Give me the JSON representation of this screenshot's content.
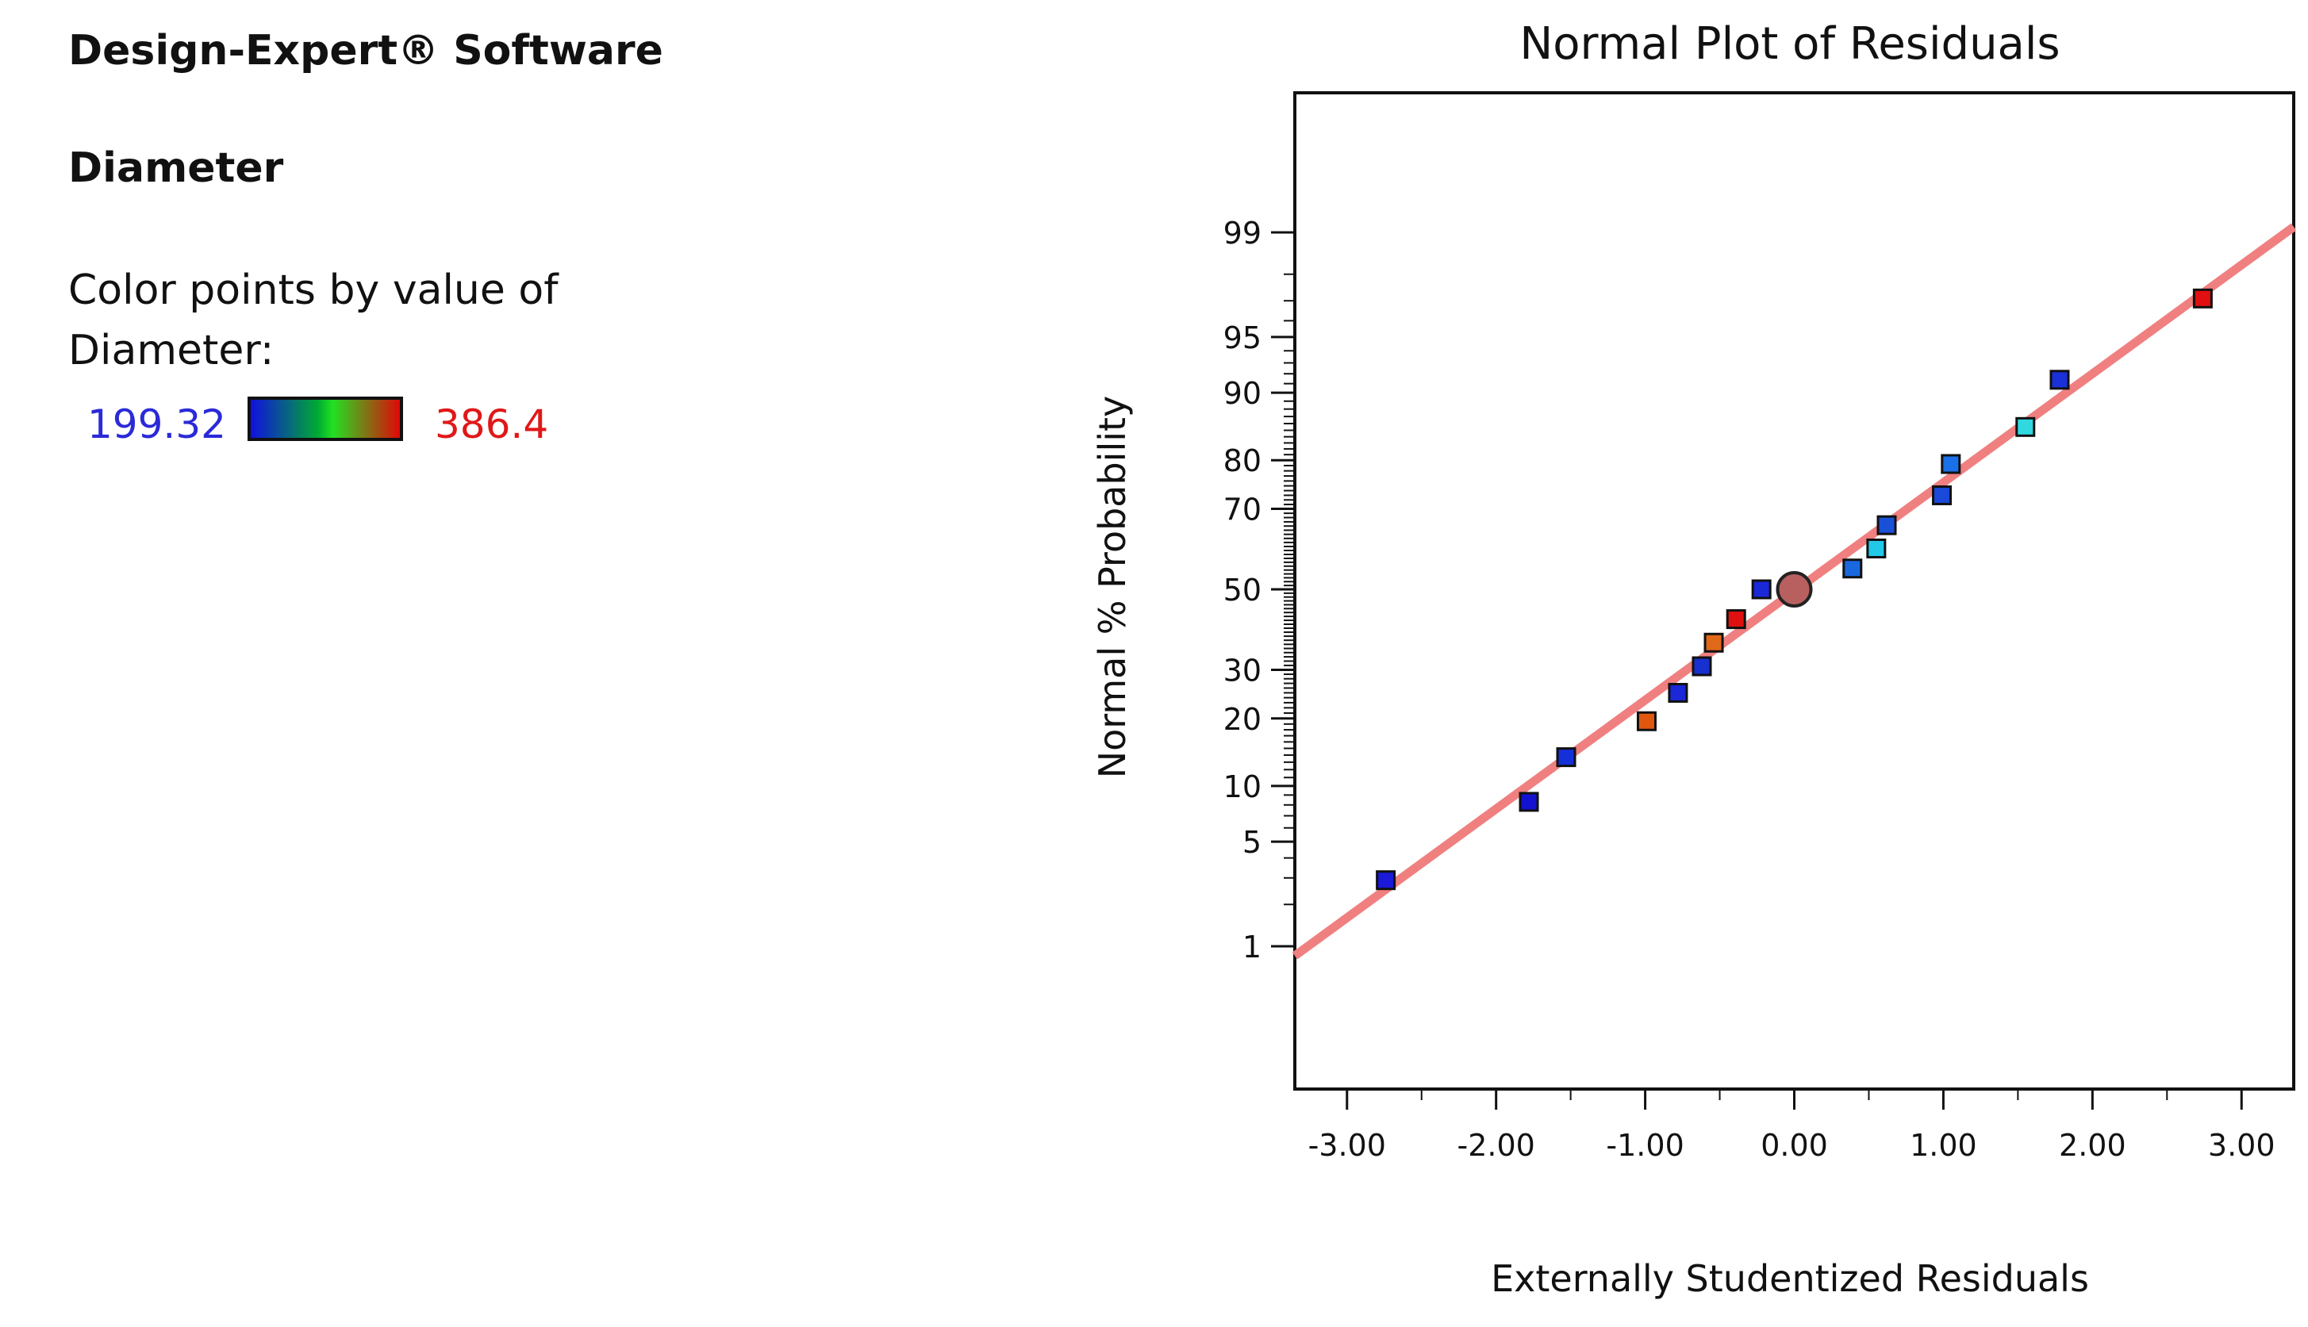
{
  "left_panel": {
    "app_title": "Design-Expert® Software",
    "response_name": "Diameter",
    "color_note": "Color points by value of Diameter:",
    "legend_min": "199.32",
    "legend_max": "386.4"
  },
  "chart_data": {
    "type": "scatter",
    "title": "Normal Plot of Residuals",
    "xlabel": "Externally Studentized Residuals",
    "ylabel": "Normal % Probability",
    "x_ticks": [
      "-3.00",
      "-2.00",
      "-1.00",
      "0.00",
      "1.00",
      "2.00",
      "3.00"
    ],
    "y_ticks": [
      "1",
      "5",
      "10",
      "20",
      "30",
      "50",
      "70",
      "80",
      "90",
      "95",
      "99"
    ],
    "xlim": [
      -3.35,
      3.35
    ],
    "y_scale": "normal-probability",
    "points": [
      {
        "x": -2.74,
        "y": 2.9,
        "color": "#1a1ad8"
      },
      {
        "x": -1.78,
        "y": 8.3,
        "color": "#1212d0"
      },
      {
        "x": -1.53,
        "y": 13.7,
        "color": "#1530d8"
      },
      {
        "x": -0.99,
        "y": 19.5,
        "color": "#e05810"
      },
      {
        "x": -0.78,
        "y": 25.0,
        "color": "#1a28d8"
      },
      {
        "x": -0.62,
        "y": 30.8,
        "color": "#1830d0"
      },
      {
        "x": -0.54,
        "y": 36.4,
        "color": "#e06818"
      },
      {
        "x": -0.39,
        "y": 42.3,
        "color": "#e01010"
      },
      {
        "x": -0.22,
        "y": 50.0,
        "color": "#1a28d8"
      },
      {
        "x": 0.39,
        "y": 55.4,
        "color": "#1a68e0"
      },
      {
        "x": 0.55,
        "y": 60.5,
        "color": "#22c8e8"
      },
      {
        "x": 0.62,
        "y": 66.2,
        "color": "#1a50d8"
      },
      {
        "x": 0.99,
        "y": 73.0,
        "color": "#1a48d8"
      },
      {
        "x": 1.05,
        "y": 79.3,
        "color": "#1a70e8"
      },
      {
        "x": 1.55,
        "y": 85.5,
        "color": "#30d8e0"
      },
      {
        "x": 1.78,
        "y": 91.4,
        "color": "#1a30d8"
      },
      {
        "x": 2.74,
        "y": 97.1,
        "color": "#e01010"
      }
    ],
    "center_marker": {
      "x": 0.0,
      "y": 50.0,
      "color": "#b86060"
    },
    "fit_line_color": "#f08080",
    "grid": false
  }
}
